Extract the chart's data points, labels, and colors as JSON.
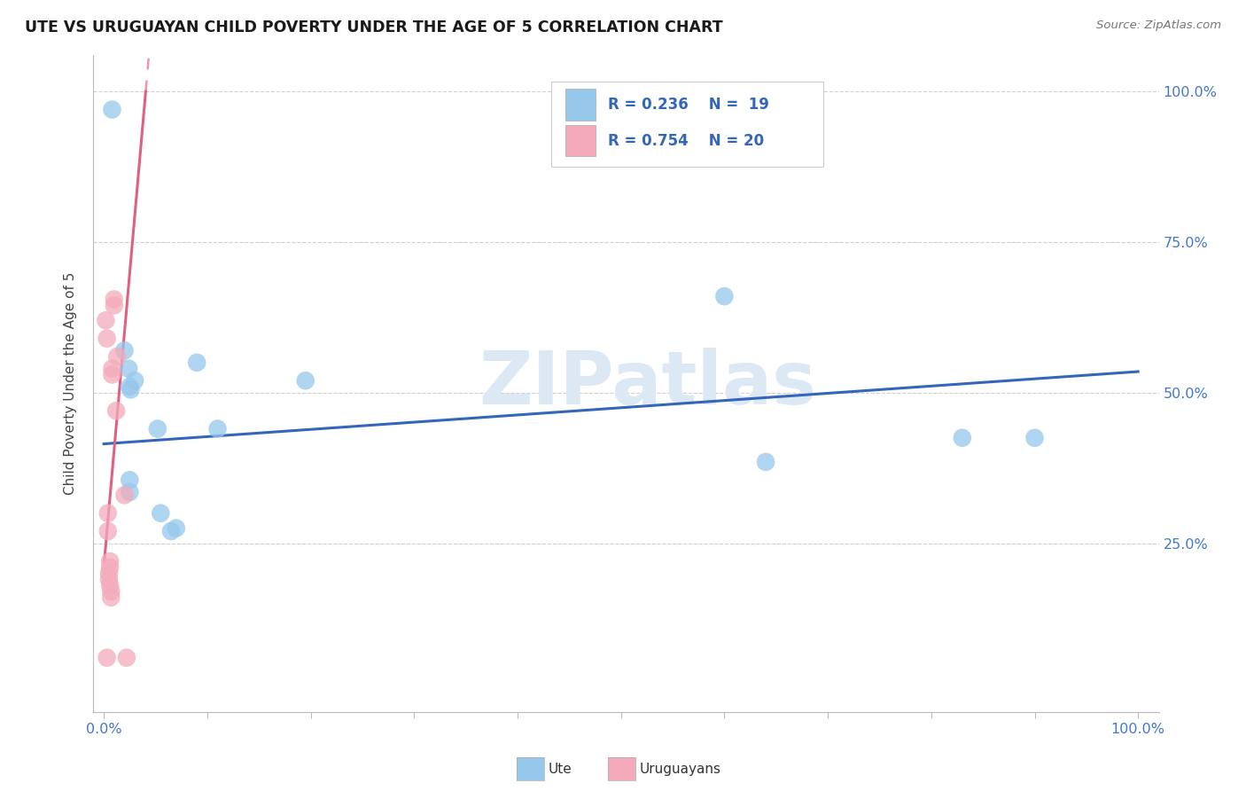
{
  "title": "UTE VS URUGUAYAN CHILD POVERTY UNDER THE AGE OF 5 CORRELATION CHART",
  "source": "Source: ZipAtlas.com",
  "ylabel": "Child Poverty Under the Age of 5",
  "watermark": "ZIPatlas",
  "ute_color": "#96C8EC",
  "uru_color": "#F4AABB",
  "ute_line_color": "#3366BB",
  "uru_line_color": "#E06080",
  "legend_r_ute": "R = 0.236",
  "legend_n_ute": "N =  19",
  "legend_r_uru": "R = 0.754",
  "legend_n_uru": "N = 20",
  "ute_scatter": [
    [
      0.008,
      0.97
    ],
    [
      0.02,
      0.57
    ],
    [
      0.024,
      0.54
    ],
    [
      0.025,
      0.51
    ],
    [
      0.026,
      0.505
    ],
    [
      0.025,
      0.355
    ],
    [
      0.025,
      0.335
    ],
    [
      0.03,
      0.52
    ],
    [
      0.052,
      0.44
    ],
    [
      0.055,
      0.3
    ],
    [
      0.065,
      0.27
    ],
    [
      0.07,
      0.275
    ],
    [
      0.09,
      0.55
    ],
    [
      0.11,
      0.44
    ],
    [
      0.195,
      0.52
    ],
    [
      0.6,
      0.66
    ],
    [
      0.64,
      0.385
    ],
    [
      0.83,
      0.425
    ],
    [
      0.9,
      0.425
    ]
  ],
  "uru_scatter": [
    [
      0.002,
      0.62
    ],
    [
      0.003,
      0.59
    ],
    [
      0.003,
      0.06
    ],
    [
      0.004,
      0.3
    ],
    [
      0.004,
      0.27
    ],
    [
      0.005,
      0.2
    ],
    [
      0.005,
      0.19
    ],
    [
      0.006,
      0.22
    ],
    [
      0.006,
      0.21
    ],
    [
      0.006,
      0.18
    ],
    [
      0.007,
      0.17
    ],
    [
      0.007,
      0.16
    ],
    [
      0.008,
      0.54
    ],
    [
      0.008,
      0.53
    ],
    [
      0.01,
      0.655
    ],
    [
      0.01,
      0.645
    ],
    [
      0.012,
      0.47
    ],
    [
      0.013,
      0.56
    ],
    [
      0.02,
      0.33
    ],
    [
      0.022,
      0.06
    ]
  ],
  "ute_trend_x0": 0.0,
  "ute_trend_x1": 1.0,
  "ute_trend_y0": 0.415,
  "ute_trend_y1": 0.535,
  "uru_slope": 19.5,
  "uru_intercept": 0.21,
  "xlim_lo": -0.01,
  "xlim_hi": 1.02,
  "ylim_lo": -0.03,
  "ylim_hi": 1.06,
  "yticks": [
    0.0,
    0.25,
    0.5,
    0.75,
    1.0
  ],
  "ytick_labels_right": [
    "",
    "25.0%",
    "50.0%",
    "75.0%",
    "100.0%"
  ],
  "n_xticks": 10
}
